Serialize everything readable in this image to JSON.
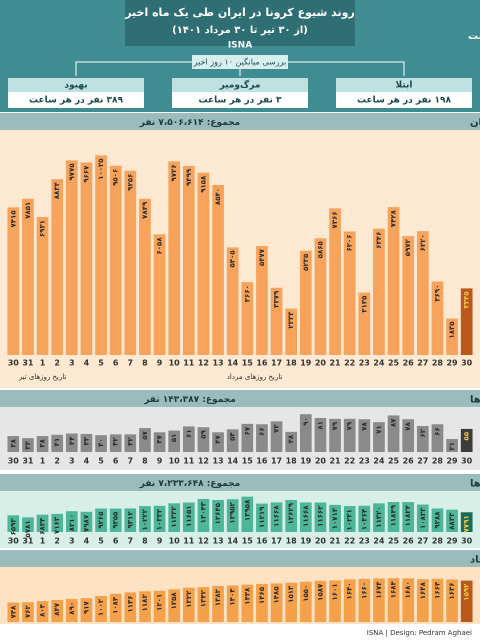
{
  "header": {
    "title": "روند شیوع کرونا در ایران طی یک ماه اخیر",
    "subtitle": "(از ۳۰ تیر تا ۳۰ مرداد ۱۴۰۱)",
    "agency": "ISNA",
    "note": "اعداد بر حسب نفر است",
    "average_label": "بررسی میانگین ۱۰ روز اخیر",
    "stats": [
      {
        "label": "بهبود",
        "value": "۳۸۹ نفر در هر ساعت"
      },
      {
        "label": "مرگ‌ومیر",
        "value": "۳ نفر در هر ساعت"
      },
      {
        "label": "ابتلا",
        "value": "۱۹۸ نفر در هر ساعت"
      }
    ]
  },
  "footer": {
    "credit": "ISNA | Design: Pedram Aghaei"
  },
  "chart_data": [
    {
      "type": "bar",
      "title": "مبتلایان",
      "total": "مجموع: ۷،۵۰۶،۶۱۴ نفر",
      "color": "#f7a35c",
      "highlight_color": "#b8581a",
      "background": "#fde8d2",
      "ylim": [
        0,
        11000
      ],
      "axis_notes": [
        "تاریخ روزهای تیر",
        "تاریخ روزهای مرداد"
      ],
      "categories": [
        "30",
        "31",
        "1",
        "2",
        "3",
        "4",
        "5",
        "6",
        "7",
        "8",
        "9",
        "10",
        "11",
        "12",
        "13",
        "14",
        "15",
        "16",
        "17",
        "18",
        "19",
        "20",
        "21",
        "22",
        "23",
        "24",
        "25",
        "26",
        "27",
        "28",
        "29",
        "30"
      ],
      "values": [
        7415,
        7851,
        6931,
        8834,
        9775,
        9667,
        10025,
        9506,
        9256,
        7849,
        6058,
        9726,
        9499,
        9158,
        8540,
        5405,
        3660,
        5477,
        3379,
        2333,
        5235,
        5865,
        7366,
        6206,
        3135,
        6346,
        7428,
        5972,
        6220,
        3690,
        1835,
        3345
      ],
      "value_labels": [
        "۷۴۱۵",
        "۷۸۵۱",
        "۶۹۳۱",
        "۸۸۳۴",
        "۹۷۷۵",
        "۹۶۶۷",
        "۱۰۰۲۵",
        "۹۵۰۶",
        "۹۲۵۶",
        "۷۸۴۹",
        "۶۰۵۸",
        "۹۷۲۶",
        "۹۴۹۹",
        "۹۱۵۸",
        "۸۵۴۰",
        "۵۴۰۵",
        "۳۶۶۰",
        "۵۴۷۷",
        "۳۳۷۹",
        "۲۳۳۳",
        "۵۲۳۵",
        "۵۸۶۵",
        "۷۳۶۶",
        "۶۲۰۶",
        "۳۱۳۵",
        "۶۳۴۶",
        "۷۴۲۸",
        "۵۹۷۲",
        "۶۲۲۰",
        "۳۶۹۰",
        "۱۸۳۵",
        "۳۳۴۵"
      ]
    },
    {
      "type": "bar",
      "title": "فوتی‌ها",
      "total": "مجموع: ۱۴۳،۳۸۷ نفر",
      "color": "#8a8a8a",
      "highlight_color": "#3c3c3c",
      "background": "#e6e6e6",
      "ylim": [
        0,
        100
      ],
      "categories": [
        "30",
        "31",
        "1",
        "2",
        "3",
        "4",
        "5",
        "6",
        "7",
        "8",
        "9",
        "10",
        "11",
        "12",
        "13",
        "14",
        "15",
        "16",
        "17",
        "18",
        "19",
        "20",
        "21",
        "22",
        "23",
        "24",
        "25",
        "26",
        "27",
        "28",
        "29",
        "30"
      ],
      "values": [
        38,
        33,
        38,
        41,
        44,
        43,
        40,
        42,
        42,
        57,
        47,
        51,
        61,
        59,
        47,
        54,
        67,
        66,
        73,
        48,
        90,
        81,
        79,
        79,
        78,
        71,
        87,
        78,
        62,
        66,
        31,
        55
      ],
      "value_labels": [
        "۳۸",
        "۳۳",
        "۳۸",
        "۴۱",
        "۴۴",
        "۴۳",
        "۴۰",
        "۴۲",
        "۴۲",
        "۵۷",
        "۴۷",
        "۵۱",
        "۶۱",
        "۵۹",
        "۴۷",
        "۵۴",
        "۶۷",
        "۶۶",
        "۷۳",
        "۴۸",
        "۹۰",
        "۸۱",
        "۷۹",
        "۷۹",
        "۷۸",
        "۷۱",
        "۸۷",
        "۷۸",
        "۶۲",
        "۶۶",
        "۳۱",
        "۵۵"
      ]
    },
    {
      "type": "bar",
      "title": "بهبودیافته‌ها",
      "total": "مجموع: ۷،۲۳۳،۶۴۸ نفر",
      "color": "#4db699",
      "highlight_color": "#1d6b56",
      "background": "#d8efe7",
      "ylim": [
        0,
        15000
      ],
      "categories": [
        "30",
        "31",
        "1",
        "2",
        "3",
        "4",
        "5",
        "6",
        "7",
        "8",
        "9",
        "10",
        "11",
        "12",
        "13",
        "14",
        "15",
        "16",
        "17",
        "18",
        "19",
        "20",
        "21",
        "22",
        "23",
        "24",
        "25",
        "26",
        "27",
        "28",
        "29",
        "30"
      ],
      "values": [
        6593,
        5781,
        6834,
        7163,
        8210,
        7987,
        9265,
        9255,
        9312,
        10222,
        10332,
        11332,
        11651,
        13043,
        12645,
        12952,
        13958,
        11219,
        11668,
        12629,
        11668,
        11662,
        10714,
        10231,
        10364,
        11320,
        11849,
        11824,
        10833,
        9288,
        8833,
        7791
      ],
      "value_labels": [
        "۶۵۹۳",
        "۵۷۸۱",
        "۶۸۳۴",
        "۷۱۶۳",
        "۸۲۱۰",
        "۷۹۸۷",
        "۹۲۶۵",
        "۹۲۵۵",
        "۹۳۱۲",
        "۱۰۲۲۲",
        "۱۰۳۳۲",
        "۱۱۳۳۲",
        "۱۱۶۵۱",
        "۱۳۰۴۳",
        "۱۲۶۴۵",
        "۱۲۹۵۲",
        "۱۳۹۵۸",
        "۱۱۲۱۹",
        "۱۱۶۶۸",
        "۱۲۶۲۹",
        "۱۱۶۶۸",
        "۱۱۶۶۲",
        "۱۰۷۱۴",
        "۱۰۲۳۱",
        "۱۰۳۶۴",
        "۱۱۳۲۰",
        "۱۱۸۴۹",
        "۱۱۸۲۴",
        "۱۰۸۳۳",
        "۹۲۸۸",
        "۸۸۳۳",
        "۷۷۹۱"
      ]
    },
    {
      "type": "bar",
      "title": "بیماران با وضعیت حاد",
      "color": "#f5a04a",
      "highlight_color": "#b8581a",
      "background": "#fde3c4",
      "ylim": [
        0,
        2000
      ],
      "values": [
        748,
        762,
        804,
        847,
        890,
        917,
        1002,
        1084,
        1136,
        1182,
        1201,
        1258,
        1322,
        1342,
        1383,
        1404,
        1438,
        1465,
        1485,
        1513,
        1550,
        1587,
        1601,
        1640,
        1660,
        1674,
        1684,
        1680,
        1648,
        1664,
        1636,
        1592
      ],
      "value_labels": [
        "۷۴۸",
        "۷۶۲",
        "۸۰۴",
        "۸۴۷",
        "۸۹۰",
        "۹۱۷",
        "۱۰۰۲",
        "۱۰۸۴",
        "۱۱۳۶",
        "۱۱۸۲",
        "۱۲۰۱",
        "۱۲۵۸",
        "۱۳۲۲",
        "۱۳۴۲",
        "۱۳۸۳",
        "۱۴۰۴",
        "۱۴۳۸",
        "۱۴۶۵",
        "۱۴۸۵",
        "۱۵۱۳",
        "۱۵۵۰",
        "۱۵۸۷",
        "۱۶۰۱",
        "۱۶۴۰",
        "۱۶۶۰",
        "۱۶۷۴",
        "۱۶۸۴",
        "۱۶۸۰",
        "۱۶۴۸",
        "۱۶۶۴",
        "۱۶۳۶",
        "۱۵۹۲"
      ]
    }
  ]
}
